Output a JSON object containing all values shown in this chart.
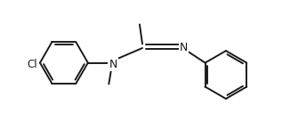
{
  "bg_color": "#ffffff",
  "line_color": "#1a1a1a",
  "line_width": 1.4,
  "font_size": 8.5,
  "fig_width": 3.17,
  "fig_height": 1.45,
  "dpi": 100,
  "xlim": [
    0.0,
    8.2
  ],
  "ylim": [
    -1.6,
    1.6
  ]
}
